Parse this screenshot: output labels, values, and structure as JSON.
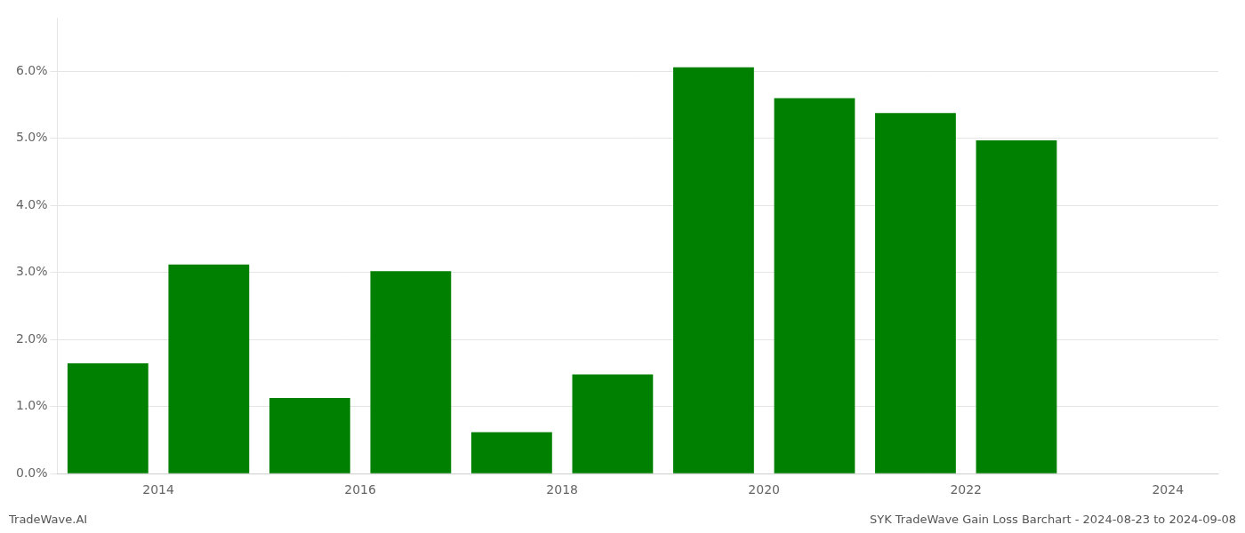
{
  "chart_data": {
    "type": "bar",
    "x": [
      2013.5,
      2014.5,
      2015.5,
      2016.5,
      2017.5,
      2018.5,
      2019.5,
      2020.5,
      2021.5,
      2022.5
    ],
    "values": [
      0.01647,
      0.0312,
      0.0113,
      0.0302,
      0.0062,
      0.0148,
      0.0606,
      0.056,
      0.0538,
      0.0497
    ],
    "color": "#008000",
    "xlim": [
      2013.0,
      2024.5
    ],
    "xticks": [
      2014,
      2016,
      2018,
      2020,
      2022,
      2024
    ],
    "ylim": [
      0,
      0.068
    ],
    "yticks": [
      {
        "value": 0.0,
        "label": "0.0%"
      },
      {
        "value": 0.01,
        "label": "1.0%"
      },
      {
        "value": 0.02,
        "label": "2.0%"
      },
      {
        "value": 0.03,
        "label": "3.0%"
      },
      {
        "value": 0.04,
        "label": "4.0%"
      },
      {
        "value": 0.05,
        "label": "5.0%"
      },
      {
        "value": 0.06,
        "label": "6.0%"
      }
    ],
    "grid": "y",
    "annotations": [
      "TradeWave.AI",
      "SYK TradeWave Gain Loss Barchart - 2024-08-23 to 2024-09-08"
    ]
  }
}
